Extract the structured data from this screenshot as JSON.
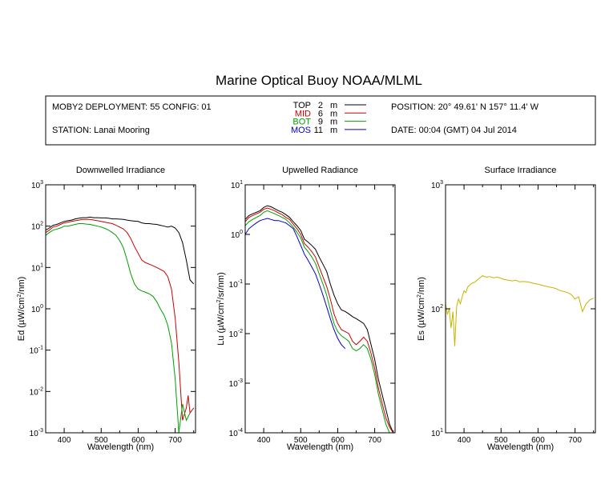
{
  "title": "Marine Optical Buoy NOAA/MLML",
  "info": {
    "deployment": "MOBY2 DEPLOYMENT: 55 CONFIG: 01",
    "station": "STATION: Lanai Mooring",
    "position": "POSITION: 20° 49.61' N   157° 11.4' W",
    "date": "DATE: 00:04 (GMT) 04 Jul 2014",
    "legend": [
      {
        "name": "TOP",
        "depth": "2",
        "unit": "m",
        "color": "#000000"
      },
      {
        "name": "MID",
        "depth": "6",
        "unit": "m",
        "color": "#cc0000"
      },
      {
        "name": "BOT",
        "depth": "9",
        "unit": "m",
        "color": "#00a000"
      },
      {
        "name": "MOS",
        "depth": "11",
        "unit": "m",
        "color": "#0000cc"
      }
    ]
  },
  "colors": {
    "surface": "#c8b400"
  },
  "chart_data": [
    {
      "type": "line",
      "title": "Downwelled Irradiance",
      "xlabel": "Wavelength (nm)",
      "ylabel_main": "Ed  (µW/cm",
      "ylabel_sup": "2",
      "ylabel_tail": "/nm)",
      "xlim": [
        350,
        755
      ],
      "ylim_log10": [
        -3,
        3
      ],
      "x_ticks": [
        400,
        500,
        600,
        700
      ],
      "y_ticks": [
        {
          "base": "10",
          "exp": "3"
        },
        {
          "base": "10",
          "exp": "2"
        },
        {
          "base": "10",
          "exp": "1"
        },
        {
          "base": "10",
          "exp": "0"
        },
        {
          "base": "10",
          "exp": "-1"
        },
        {
          "base": "10",
          "exp": "-2"
        },
        {
          "base": "10",
          "exp": "-3"
        }
      ],
      "series": [
        {
          "name": "TOP",
          "color": "#000000",
          "x": [
            350,
            360,
            370,
            380,
            390,
            400,
            410,
            420,
            430,
            440,
            450,
            460,
            470,
            480,
            490,
            500,
            510,
            520,
            530,
            540,
            550,
            560,
            570,
            580,
            590,
            600,
            610,
            620,
            630,
            640,
            650,
            660,
            670,
            680,
            690,
            700,
            710,
            720,
            730,
            740,
            750
          ],
          "y": [
            80,
            90,
            105,
            110,
            120,
            130,
            135,
            140,
            150,
            155,
            160,
            160,
            165,
            160,
            160,
            158,
            158,
            155,
            150,
            150,
            148,
            145,
            140,
            135,
            132,
            130,
            120,
            115,
            115,
            112,
            110,
            105,
            100,
            95,
            100,
            90,
            70,
            40,
            15,
            5,
            4
          ]
        },
        {
          "name": "MID",
          "color": "#cc0000",
          "x": [
            350,
            360,
            370,
            380,
            390,
            400,
            410,
            420,
            430,
            440,
            450,
            460,
            470,
            480,
            490,
            500,
            510,
            520,
            530,
            540,
            550,
            560,
            570,
            580,
            590,
            600,
            610,
            620,
            630,
            640,
            650,
            660,
            670,
            680,
            690,
            700,
            710,
            720,
            730,
            735,
            740,
            750
          ],
          "y": [
            70,
            80,
            95,
            100,
            110,
            120,
            125,
            130,
            135,
            140,
            145,
            145,
            145,
            140,
            135,
            130,
            125,
            120,
            115,
            105,
            95,
            85,
            70,
            50,
            32,
            22,
            15,
            13,
            12,
            11,
            10,
            9,
            8,
            6,
            3,
            0.6,
            0.05,
            0.002,
            0.004,
            0.008,
            0.003,
            0.004
          ]
        },
        {
          "name": "BOT",
          "color": "#00a000",
          "x": [
            350,
            360,
            370,
            380,
            390,
            400,
            410,
            420,
            430,
            440,
            450,
            460,
            470,
            480,
            490,
            500,
            510,
            520,
            530,
            540,
            550,
            560,
            570,
            580,
            590,
            600,
            610,
            620,
            630,
            640,
            650,
            660,
            670,
            680,
            690,
            700,
            710,
            720,
            730,
            740
          ],
          "y": [
            60,
            70,
            80,
            85,
            90,
            100,
            100,
            105,
            110,
            115,
            115,
            112,
            110,
            105,
            100,
            95,
            88,
            80,
            70,
            60,
            45,
            30,
            15,
            7,
            4,
            3,
            2.7,
            2.5,
            2.3,
            2.0,
            1.5,
            1.0,
            0.7,
            0.4,
            0.15,
            0.02,
            0.001,
            0.005,
            0.002,
            0.003
          ]
        }
      ]
    },
    {
      "type": "line",
      "title": "Upwelled Radiance",
      "xlabel": "Wavelength (nm)",
      "ylabel_main": "Lu  (µW/cm",
      "ylabel_sup": "2",
      "ylabel_tail": "/sr/nm)",
      "xlim": [
        350,
        755
      ],
      "ylim_log10": [
        -4,
        1
      ],
      "x_ticks": [
        400,
        500,
        600,
        700
      ],
      "y_ticks": [
        {
          "base": "10",
          "exp": "1"
        },
        {
          "base": "10",
          "exp": "0"
        },
        {
          "base": "10",
          "exp": "-1"
        },
        {
          "base": "10",
          "exp": "-2"
        },
        {
          "base": "10",
          "exp": "-3"
        },
        {
          "base": "10",
          "exp": "-4"
        }
      ],
      "series": [
        {
          "name": "TOP",
          "color": "#000000",
          "x": [
            350,
            360,
            370,
            380,
            390,
            400,
            410,
            420,
            430,
            440,
            450,
            460,
            470,
            480,
            490,
            500,
            510,
            520,
            530,
            540,
            550,
            560,
            570,
            580,
            590,
            600,
            610,
            620,
            630,
            640,
            650,
            660,
            670,
            680,
            690,
            700,
            710,
            720,
            730,
            740,
            750
          ],
          "y": [
            2.0,
            2.4,
            2.6,
            2.8,
            3.0,
            3.5,
            3.8,
            3.6,
            3.3,
            3.0,
            2.8,
            2.5,
            2.2,
            1.8,
            1.5,
            1.2,
            0.8,
            0.7,
            0.6,
            0.5,
            0.35,
            0.25,
            0.18,
            0.1,
            0.06,
            0.04,
            0.03,
            0.028,
            0.025,
            0.022,
            0.02,
            0.018,
            0.016,
            0.012,
            0.006,
            0.003,
            0.0012,
            0.0006,
            0.0003,
            0.00015,
            0.0001
          ]
        },
        {
          "name": "MID",
          "color": "#cc0000",
          "x": [
            350,
            360,
            370,
            380,
            390,
            400,
            410,
            420,
            430,
            440,
            450,
            460,
            470,
            480,
            490,
            500,
            510,
            520,
            530,
            540,
            550,
            560,
            570,
            580,
            590,
            600,
            610,
            620,
            630,
            640,
            650,
            660,
            670,
            680,
            690,
            700,
            710,
            720,
            730,
            740,
            750
          ],
          "y": [
            1.8,
            2.2,
            2.4,
            2.6,
            2.8,
            3.2,
            3.4,
            3.2,
            3.0,
            2.7,
            2.5,
            2.2,
            2.0,
            1.6,
            1.3,
            1.0,
            0.65,
            0.55,
            0.45,
            0.35,
            0.22,
            0.14,
            0.09,
            0.05,
            0.025,
            0.016,
            0.012,
            0.011,
            0.01,
            0.007,
            0.006,
            0.007,
            0.0085,
            0.007,
            0.004,
            0.002,
            0.0008,
            0.0004,
            0.0002,
            0.00013,
            0.0001
          ]
        },
        {
          "name": "BOT",
          "color": "#00a000",
          "x": [
            350,
            360,
            370,
            380,
            390,
            400,
            410,
            420,
            430,
            440,
            450,
            460,
            470,
            480,
            490,
            500,
            510,
            520,
            530,
            540,
            550,
            560,
            570,
            580,
            590,
            600,
            610,
            620,
            630,
            640,
            650,
            660,
            670,
            680,
            690,
            700,
            710,
            720,
            730,
            740,
            750
          ],
          "y": [
            1.5,
            1.8,
            2.0,
            2.2,
            2.4,
            2.8,
            3.0,
            2.8,
            2.6,
            2.4,
            2.2,
            2.0,
            1.7,
            1.4,
            1.1,
            0.85,
            0.55,
            0.45,
            0.35,
            0.26,
            0.16,
            0.1,
            0.06,
            0.03,
            0.016,
            0.011,
            0.009,
            0.008,
            0.007,
            0.005,
            0.0045,
            0.005,
            0.006,
            0.005,
            0.003,
            0.0015,
            0.0006,
            0.0003,
            0.00015,
            0.0001,
            0.0001
          ]
        },
        {
          "name": "MOS",
          "color": "#0000cc",
          "x": [
            350,
            360,
            370,
            380,
            390,
            400,
            410,
            420,
            430,
            440,
            450,
            460,
            470,
            480,
            490,
            500,
            510,
            520,
            530,
            540,
            550,
            560,
            570,
            580,
            590,
            600,
            610,
            620
          ],
          "y": [
            1.0,
            1.3,
            1.5,
            1.7,
            1.9,
            2.0,
            2.1,
            2.0,
            1.9,
            1.9,
            1.8,
            1.7,
            1.5,
            1.3,
            0.9,
            0.6,
            0.4,
            0.3,
            0.22,
            0.16,
            0.1,
            0.06,
            0.035,
            0.02,
            0.012,
            0.008,
            0.006,
            0.005
          ]
        }
      ]
    },
    {
      "type": "line",
      "title": "Surface Irradiance",
      "xlabel": "Wavelength (nm)",
      "ylabel_main": "Es  (µW/cm",
      "ylabel_sup": "2",
      "ylabel_tail": "/nm)",
      "xlim": [
        350,
        755
      ],
      "ylim_log10": [
        1,
        3
      ],
      "x_ticks": [
        400,
        500,
        600,
        700
      ],
      "y_ticks": [
        {
          "base": "10",
          "exp": "3"
        },
        {
          "base": "10",
          "exp": "2"
        },
        {
          "base": "10",
          "exp": "1"
        }
      ],
      "series": [
        {
          "name": "Es",
          "color": "#c8b400",
          "x": [
            350,
            355,
            360,
            365,
            370,
            375,
            380,
            385,
            390,
            395,
            400,
            405,
            410,
            420,
            430,
            440,
            450,
            460,
            470,
            480,
            490,
            500,
            510,
            520,
            530,
            540,
            550,
            560,
            570,
            580,
            590,
            600,
            610,
            620,
            630,
            640,
            650,
            660,
            670,
            680,
            690,
            700,
            710,
            720,
            730,
            740,
            750
          ],
          "y": [
            110,
            90,
            100,
            70,
            95,
            50,
            105,
            120,
            110,
            125,
            140,
            135,
            150,
            160,
            165,
            175,
            185,
            180,
            182,
            178,
            180,
            176,
            172,
            170,
            168,
            170,
            165,
            166,
            165,
            163,
            160,
            158,
            155,
            152,
            150,
            148,
            145,
            140,
            138,
            135,
            130,
            120,
            125,
            95,
            110,
            118,
            122
          ]
        }
      ]
    }
  ]
}
